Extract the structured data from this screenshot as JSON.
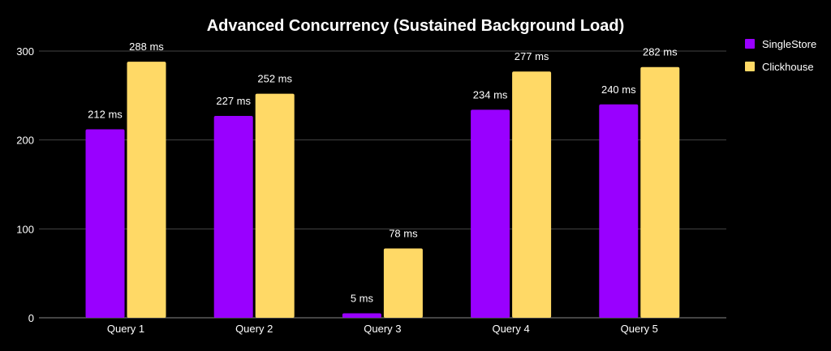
{
  "chart_data": {
    "type": "bar",
    "title": "Advanced Concurrency (Sustained Background Load)",
    "xlabel": "",
    "ylabel": "",
    "categories": [
      "Query 1",
      "Query 2",
      "Query 3",
      "Query 4",
      "Query 5"
    ],
    "series": [
      {
        "name": "SingleStore",
        "color": "#9900ff",
        "values": [
          212,
          227,
          5,
          234,
          240
        ],
        "labels": [
          "212 ms",
          "227 ms",
          "5 ms",
          "234 ms",
          "240 ms"
        ]
      },
      {
        "name": "Clickhouse",
        "color": "#ffd966",
        "values": [
          288,
          252,
          78,
          277,
          282
        ],
        "labels": [
          "288 ms",
          "252 ms",
          "78 ms",
          "277 ms",
          "282 ms"
        ]
      }
    ],
    "ylim": [
      0,
      300
    ],
    "yticks": [
      "0",
      "100",
      "200",
      "300"
    ],
    "ytick_values": [
      0,
      100,
      200,
      300
    ],
    "grid": true,
    "legend_position": "right"
  }
}
